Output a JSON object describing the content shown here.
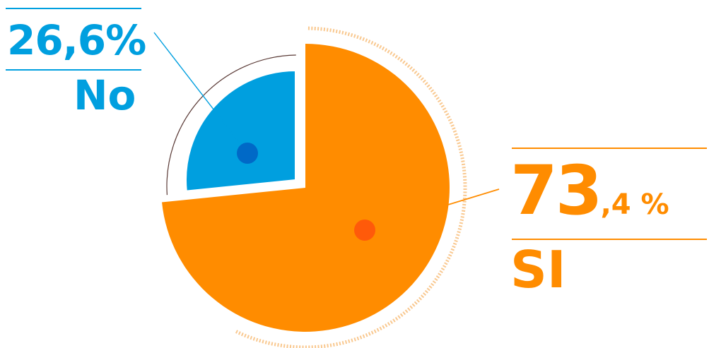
{
  "chart_data": {
    "type": "pie",
    "slices": [
      {
        "label": "No",
        "value": 26.6,
        "display": "26,6%",
        "color": "#009fdf"
      },
      {
        "label": "SI",
        "value": 73.4,
        "display_int": "73",
        "display_dec": ",4 %",
        "color": "#ff8c00"
      }
    ]
  },
  "colors": {
    "no": "#009fdf",
    "no_dot": "#0069c7",
    "si": "#ff8c00",
    "si_dot": "#ff5a0a",
    "dotted_ring": "#f9c88f",
    "thin_ring": "#5a3a36"
  }
}
